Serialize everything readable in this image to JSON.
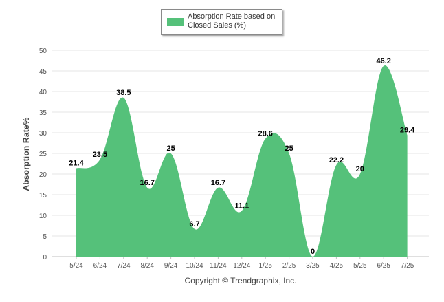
{
  "chart_data": {
    "type": "area",
    "categories": [
      "5/24",
      "6/24",
      "7/24",
      "8/24",
      "9/24",
      "10/24",
      "11/24",
      "12/24",
      "1/25",
      "2/25",
      "3/25",
      "4/25",
      "5/25",
      "6/25",
      "7/25"
    ],
    "series": [
      {
        "name": "Absorption Rate based on Closed Sales (%)",
        "values": [
          21.4,
          23.5,
          38.5,
          16.7,
          25,
          6.7,
          16.7,
          11.1,
          28.6,
          25,
          0,
          22.2,
          20,
          46.2,
          29.4
        ],
        "color": "#55c17a"
      }
    ],
    "data_labels": [
      "21.4",
      "23.5",
      "38.5",
      "16.7",
      "25",
      "6.7",
      "16.7",
      "11.1",
      "28.6",
      "25",
      "0",
      "22.2",
      "20",
      "46.2",
      "29.4"
    ],
    "ylabel": "Absorption Rate%",
    "xlabel": "",
    "ylim": [
      0,
      50
    ],
    "yticks": [
      0,
      5,
      10,
      15,
      20,
      25,
      30,
      35,
      40,
      45,
      50
    ],
    "grid": true,
    "legend": "top-center"
  },
  "legend": {
    "line1": "Absorption Rate based on",
    "line2": "Closed Sales (%)"
  },
  "footer": {
    "copyright": "Copyright © Trendgraphix, Inc."
  }
}
